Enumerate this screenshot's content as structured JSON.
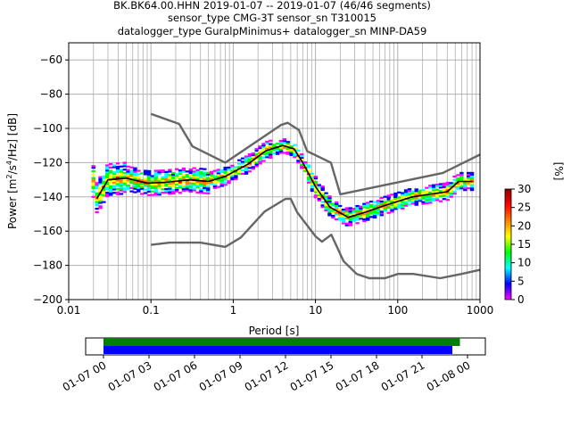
{
  "header": {
    "line1": "BK.BK64.00.HHN   2019-01-07 -- 2019-01-07  (46/46 segments)",
    "line2": "sensor_type CMG-3T sensor_sn T310015",
    "line3": "datalogger_type GuralpMinimus+ datalogger_sn MINP-DA59"
  },
  "chart_data": [
    {
      "type": "heatmap",
      "xlabel": "Period [s]",
      "ylabel_parts": [
        "Power [m",
        "2",
        "/s",
        "4",
        "/Hz] [dB]"
      ],
      "xscale": "log",
      "xlim": [
        0.01,
        1000
      ],
      "ylim": [
        -200,
        -50
      ],
      "x_ticks": [
        0.01,
        0.1,
        1,
        10,
        100,
        1000
      ],
      "x_tick_labels": [
        "0.01",
        "0.1",
        "1",
        "10",
        "100",
        "1000"
      ],
      "y_ticks": [
        -200,
        -180,
        -160,
        -140,
        -120,
        -100,
        -80,
        -60
      ],
      "y_tick_labels": [
        "−200",
        "−180",
        "−160",
        "−140",
        "−120",
        "−100",
        "−80",
        "−60"
      ],
      "grid": true,
      "colorbar": {
        "label": "[%]",
        "range": [
          0,
          30
        ],
        "ticks": [
          0,
          5,
          10,
          15,
          20,
          25,
          30
        ],
        "colors": [
          "#ff00ff",
          "#0000ff",
          "#00ffff",
          "#00ff00",
          "#ffff00",
          "#ff8000",
          "#ff0000",
          "#8b0000"
        ]
      },
      "series": [
        {
          "style": "gray-reference",
          "points": [
            [
              0.1,
              -91.5
            ],
            [
              0.22,
              -97.4
            ],
            [
              0.32,
              -110.5
            ],
            [
              0.8,
              -120.0
            ],
            [
              3.8,
              -98.0
            ],
            [
              4.6,
              -96.7
            ],
            [
              6.3,
              -101.0
            ],
            [
              7.9,
              -113.3
            ],
            [
              15.4,
              -120.0
            ],
            [
              20.0,
              -138.5
            ],
            [
              354.8,
              -126.0
            ],
            [
              10000,
              -91.5
            ]
          ]
        },
        {
          "style": "gray-reference",
          "points": [
            [
              0.1,
              -168.0
            ],
            [
              0.17,
              -166.7
            ],
            [
              0.4,
              -166.7
            ],
            [
              0.8,
              -169.2
            ],
            [
              1.24,
              -163.7
            ],
            [
              2.4,
              -148.6
            ],
            [
              4.3,
              -141.2
            ],
            [
              5.0,
              -141.1
            ],
            [
              6.0,
              -149.0
            ],
            [
              10.0,
              -163.0
            ],
            [
              12.0,
              -166.2
            ],
            [
              15.6,
              -162.1
            ],
            [
              21.9,
              -177.5
            ],
            [
              31.6,
              -185.0
            ],
            [
              45.0,
              -187.5
            ],
            [
              70.0,
              -187.5
            ],
            [
              101.0,
              -185.0
            ],
            [
              154.0,
              -185.0
            ],
            [
              328.0,
              -187.5
            ],
            [
              600.0,
              -185.0
            ],
            [
              10000,
              -172.0
            ]
          ]
        },
        {
          "style": "mean-line",
          "points": [
            [
              0.022,
              -141.0
            ],
            [
              0.03,
              -130.0
            ],
            [
              0.05,
              -129.0
            ],
            [
              0.09,
              -132.0
            ],
            [
              0.15,
              -131.5
            ],
            [
              0.3,
              -130.0
            ],
            [
              0.5,
              -131.0
            ],
            [
              0.8,
              -128.0
            ],
            [
              1.5,
              -121.0
            ],
            [
              2.5,
              -113.0
            ],
            [
              4.0,
              -110.0
            ],
            [
              5.5,
              -112.0
            ],
            [
              7.0,
              -120.0
            ],
            [
              10.0,
              -134.0
            ],
            [
              15.0,
              -146.0
            ],
            [
              25.0,
              -152.0
            ],
            [
              40.0,
              -149.0
            ],
            [
              70.0,
              -145.0
            ],
            [
              150.0,
              -140.0
            ],
            [
              400.0,
              -137.0
            ],
            [
              550.0,
              -131.0
            ],
            [
              800.0,
              -131.0
            ]
          ]
        }
      ]
    },
    {
      "type": "timeline",
      "x_tick_labels": [
        "01-07 00",
        "01-07 03",
        "01-07 06",
        "01-07 09",
        "01-07 12",
        "01-07 15",
        "01-07 18",
        "01-07 21",
        "01-08 00"
      ],
      "bars": [
        {
          "color": "#008000",
          "start": "01-07 00:00",
          "end": "01-07 23:30"
        },
        {
          "color": "#0000ff",
          "start": "01-07 00:00",
          "end": "01-07 23:00"
        }
      ]
    }
  ]
}
